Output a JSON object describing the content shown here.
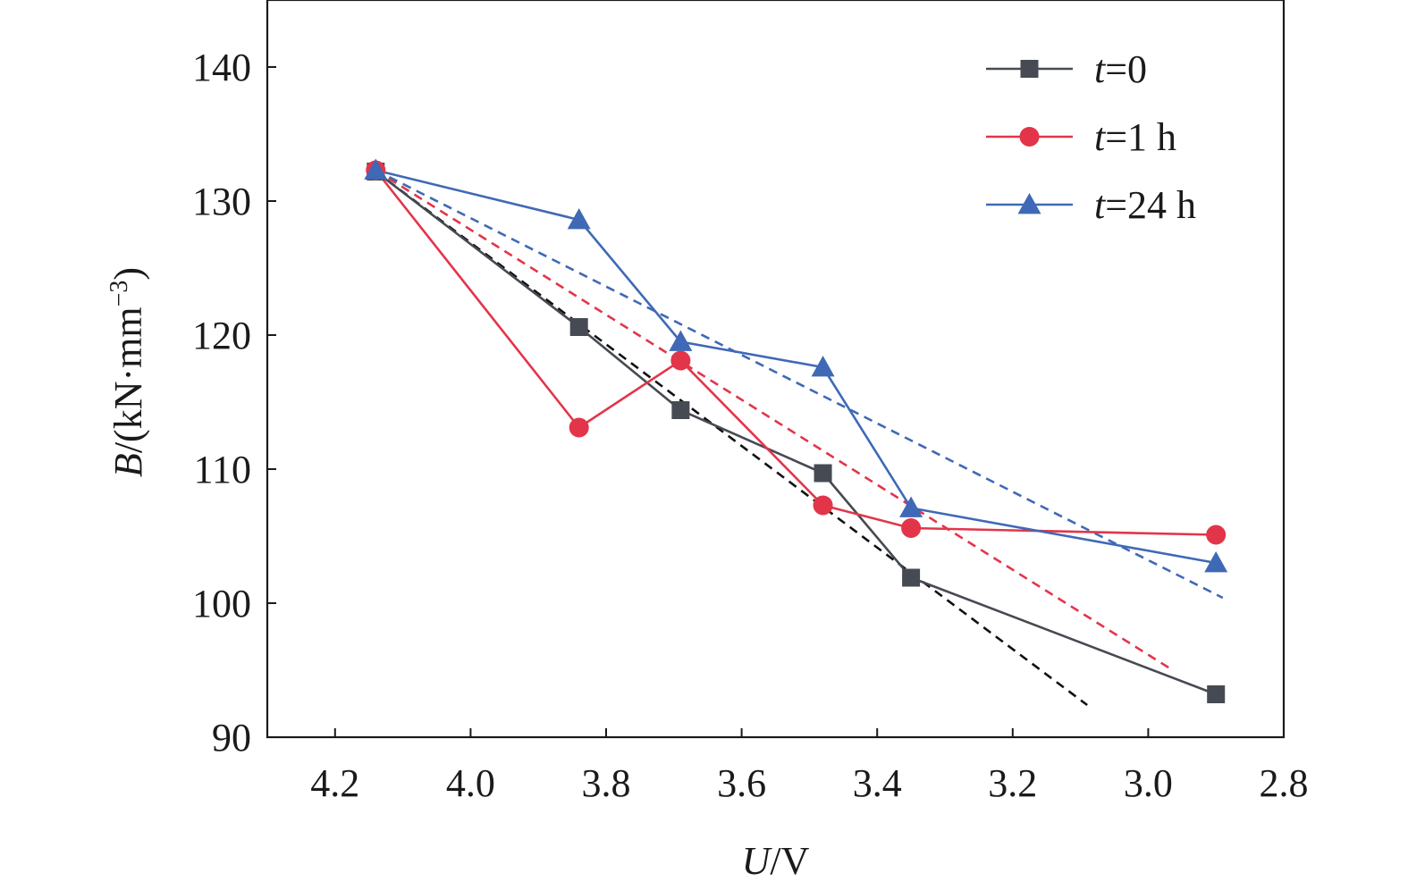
{
  "chart_data": {
    "type": "line",
    "xlabel": {
      "var": "U",
      "unit": "/V"
    },
    "ylabel": {
      "var": "B",
      "unit": "/(kN·mm",
      "sup": "−3",
      "close": ")"
    },
    "xlim": [
      4.3,
      2.8
    ],
    "ylim": [
      90,
      145
    ],
    "x_reversed": true,
    "x_ticks": [
      4.2,
      4.0,
      3.8,
      3.6,
      3.4,
      3.2,
      3.0,
      2.8
    ],
    "x_tick_labels": [
      "4.2",
      "4.0",
      "3.8",
      "3.6",
      "3.4",
      "3.2",
      "3.0",
      "2.8"
    ],
    "y_ticks": [
      90,
      100,
      110,
      120,
      130,
      140
    ],
    "y_tick_labels": [
      "90",
      "100",
      "110",
      "120",
      "130",
      "140"
    ],
    "grid": false,
    "legend_position": "top-right",
    "series": [
      {
        "name": "t=0",
        "legend_var": "t",
        "legend_rest": "=0",
        "color": "#464a52",
        "marker": "square",
        "x": [
          4.14,
          3.84,
          3.69,
          3.48,
          3.35,
          2.9
        ],
        "y": [
          132.2,
          120.6,
          114.4,
          109.7,
          101.9,
          93.2
        ]
      },
      {
        "name": "t=1 h",
        "legend_var": "t",
        "legend_rest": "=1 h",
        "color": "#e2354a",
        "marker": "circle",
        "x": [
          4.14,
          3.84,
          3.69,
          3.48,
          3.35,
          2.9
        ],
        "y": [
          132.3,
          113.1,
          118.1,
          107.3,
          105.6,
          105.1
        ]
      },
      {
        "name": "t=24 h",
        "legend_var": "t",
        "legend_rest": "=24 h",
        "color": "#3f69b6",
        "marker": "triangle",
        "x": [
          4.14,
          3.84,
          3.69,
          3.48,
          3.35,
          2.9
        ],
        "y": [
          132.3,
          128.6,
          119.5,
          117.6,
          107.1,
          103.0
        ]
      }
    ],
    "fit_lines": [
      {
        "color": "#111111",
        "x": [
          4.14,
          3.09
        ],
        "y": [
          132.2,
          92.4
        ]
      },
      {
        "color": "#e2354a",
        "x": [
          4.14,
          2.97
        ],
        "y": [
          132.3,
          95.2
        ]
      },
      {
        "color": "#3f69b6",
        "x": [
          4.14,
          2.89
        ],
        "y": [
          132.3,
          100.4
        ]
      }
    ]
  }
}
